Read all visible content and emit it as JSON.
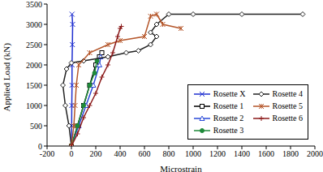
{
  "chart_data": {
    "type": "line",
    "x_label": "Microstrain",
    "y_label": "Applied Load (kN)",
    "xlim": [
      -200,
      2000
    ],
    "xticks": [
      -200,
      0,
      200,
      400,
      600,
      800,
      1000,
      1200,
      1400,
      1600,
      1800,
      2000
    ],
    "ylim": [
      0,
      3500
    ],
    "yticks": [
      0,
      500,
      1000,
      1500,
      2000,
      2500,
      3000,
      3500
    ],
    "grid": false,
    "legend": "lower right",
    "series": [
      {
        "name": "Rosette X",
        "color": "#1f2fd0",
        "marker": "x",
        "x": [
          0,
          2,
          3,
          5,
          5,
          8,
          10,
          5
        ],
        "values": [
          0,
          500,
          1000,
          1500,
          2000,
          2500,
          3000,
          3250
        ]
      },
      {
        "name": "Rosette 1",
        "color": "#000000",
        "marker": "square",
        "x": [
          0,
          50,
          100,
          150,
          200,
          230,
          250
        ],
        "values": [
          0,
          500,
          1000,
          1500,
          2000,
          2200,
          2300
        ]
      },
      {
        "name": "Rosette 2",
        "color": "#2a4ad8",
        "marker": "triangle",
        "x": [
          0,
          60,
          120,
          180,
          230,
          240
        ],
        "values": [
          0,
          500,
          1000,
          1500,
          2000,
          2200
        ]
      },
      {
        "name": "Rosette 3",
        "color": "#1e8a3a",
        "marker": "circle",
        "x": [
          0,
          50,
          100,
          150,
          190,
          210
        ],
        "values": [
          0,
          500,
          1000,
          1500,
          1800,
          2100
        ]
      },
      {
        "name": "Rosette 4",
        "color": "#222222",
        "marker": "diamond",
        "x": [
          0,
          -20,
          -50,
          -70,
          -40,
          0,
          100,
          300,
          450,
          550,
          650,
          700,
          650,
          700,
          800,
          1000,
          1400,
          1900
        ],
        "values": [
          0,
          500,
          1000,
          1500,
          1900,
          2050,
          2100,
          2200,
          2300,
          2350,
          2500,
          2700,
          2800,
          3000,
          3250,
          3250,
          3250,
          3250
        ]
      },
      {
        "name": "Rosette 5",
        "color": "#b5562a",
        "marker": "star",
        "x": [
          0,
          20,
          30,
          40,
          60,
          150,
          300,
          400,
          600,
          650,
          700,
          750,
          900
        ],
        "values": [
          0,
          500,
          1000,
          1500,
          2000,
          2300,
          2500,
          2600,
          2700,
          3200,
          3250,
          3000,
          2900
        ]
      },
      {
        "name": "Rosette 6",
        "color": "#8b1a1a",
        "marker": "plus",
        "x": [
          0,
          50,
          100,
          150,
          200,
          250,
          300,
          340,
          380,
          400,
          410
        ],
        "values": [
          0,
          300,
          700,
          1000,
          1300,
          1700,
          2000,
          2300,
          2700,
          2900,
          2950
        ]
      }
    ]
  }
}
